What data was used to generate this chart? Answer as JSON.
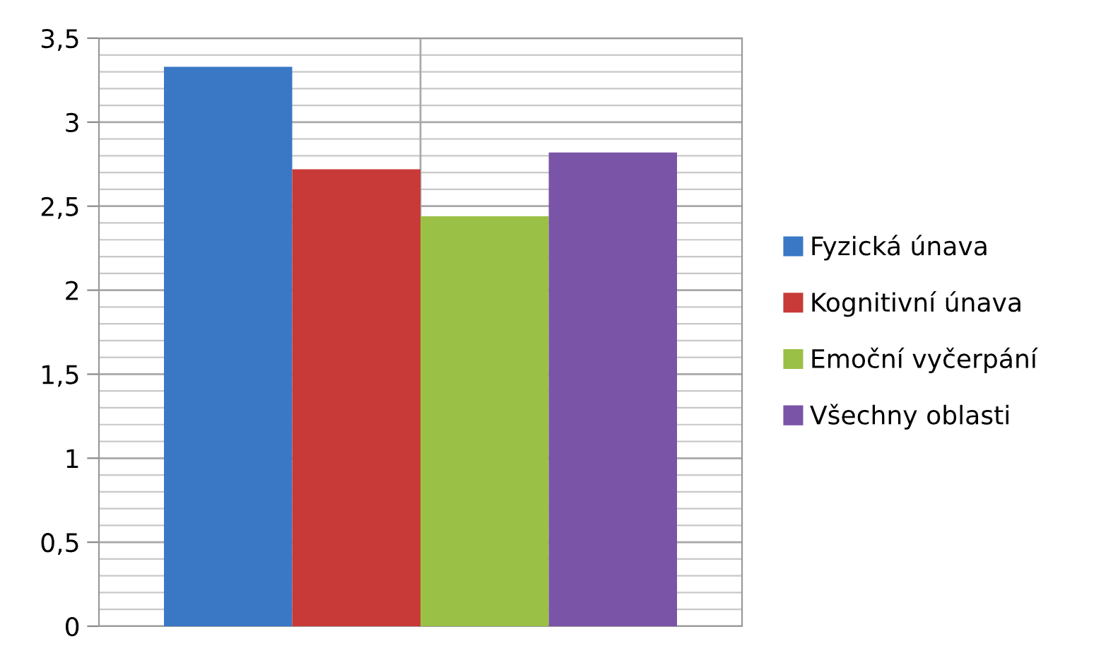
{
  "chart_data": {
    "type": "bar",
    "categories": [
      null
    ],
    "series": [
      {
        "name": "Fyzická únava",
        "color": "#3a78c6",
        "values": [
          3.33
        ]
      },
      {
        "name": "Kognitivní únava",
        "color": "#c83a37",
        "values": [
          2.72
        ]
      },
      {
        "name": "Emoční vyčerpání",
        "color": "#9bc046",
        "values": [
          2.44
        ]
      },
      {
        "name": "Všechny oblasti",
        "color": "#7a54a6",
        "values": [
          2.82
        ]
      }
    ],
    "ylim": [
      0,
      3.5
    ],
    "yticks": [
      {
        "value": 0,
        "label": "0"
      },
      {
        "value": 0.5,
        "label": "0,5"
      },
      {
        "value": 1,
        "label": "1"
      },
      {
        "value": 1.5,
        "label": "1,5"
      },
      {
        "value": 2,
        "label": "2"
      },
      {
        "value": 2.5,
        "label": "2,5"
      },
      {
        "value": 3,
        "label": "3"
      },
      {
        "value": 3.5,
        "label": "3,5"
      }
    ],
    "grid": true,
    "legend": "right"
  }
}
